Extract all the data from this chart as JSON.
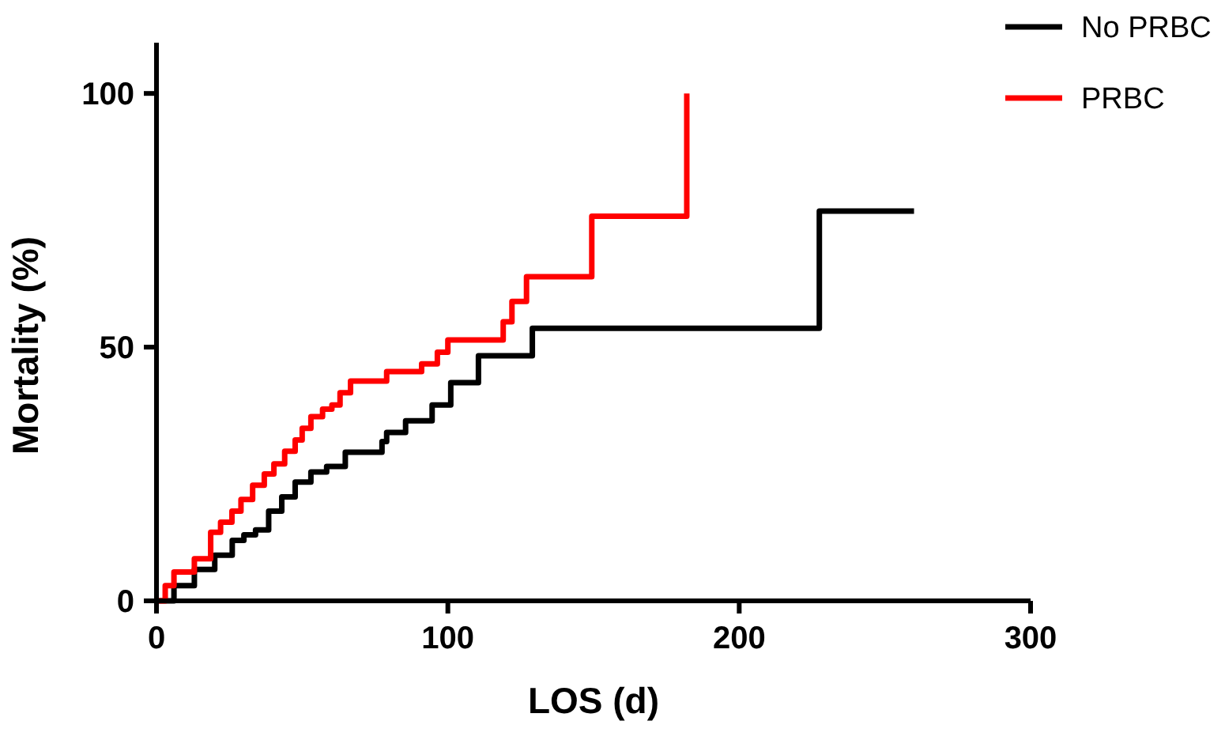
{
  "chart_data": {
    "type": "step",
    "xlabel": "LOS (d)",
    "ylabel": "Mortality (%)",
    "xlim": [
      0,
      300
    ],
    "ylim": [
      0,
      110
    ],
    "xticks": [
      0,
      100,
      200,
      300
    ],
    "yticks": [
      0,
      50,
      100
    ],
    "grid": false,
    "legend": "top right",
    "line_style": "solid",
    "marker": "none",
    "series": [
      {
        "name": "No PRBC",
        "color": "#000000",
        "x": [
          0,
          6,
          13,
          20,
          26,
          30,
          34,
          38.5,
          43,
          47.6,
          53,
          58.4,
          64.8,
          77.4,
          79,
          85.5,
          94.6,
          101,
          110.5,
          129,
          227.5,
          260
        ],
        "values": [
          0,
          3,
          6.2,
          9,
          11.9,
          13,
          14,
          17.7,
          20.5,
          23.4,
          25.4,
          26.5,
          29.3,
          31.4,
          33.2,
          35.5,
          38.6,
          43,
          48.3,
          53.7,
          76.8,
          76.8
        ]
      },
      {
        "name": "PRBC",
        "color": "#ff0000",
        "x": [
          0,
          3,
          6,
          13,
          18.6,
          22,
          25.9,
          29,
          33,
          37,
          40.3,
          44,
          47.6,
          50,
          53,
          57,
          60.2,
          63,
          66.6,
          79,
          86,
          91,
          96.4,
          100,
          119,
          122,
          127,
          149.4,
          182
        ],
        "values": [
          0,
          3,
          5.7,
          8.3,
          13.5,
          15.5,
          17.7,
          20,
          22.8,
          25,
          27,
          29.5,
          31.7,
          34,
          36.3,
          37.8,
          38.6,
          41,
          43.3,
          45.2,
          45.2,
          46.7,
          49,
          51.4,
          55,
          59,
          63.9,
          75.8,
          100
        ]
      }
    ]
  }
}
